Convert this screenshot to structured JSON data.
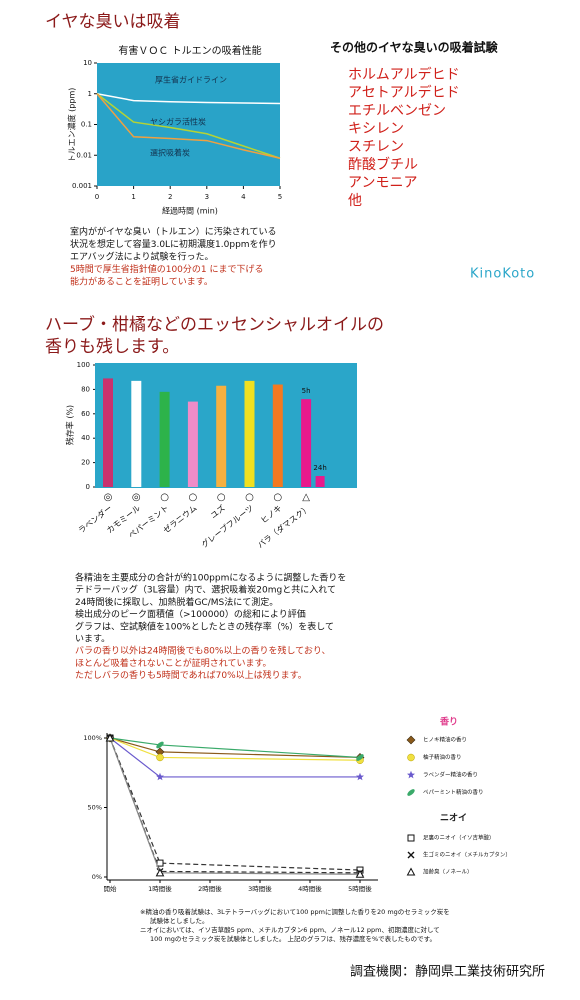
{
  "heading1": "イヤな臭いは吸着",
  "chart_data": [
    {
      "type": "line",
      "title": "有害ＶＯＣ トルエンの吸着性能",
      "xlabel": "経過時間 (min)",
      "ylabel": "トルエン濃度 (ppm)",
      "x": [
        0,
        1,
        2,
        3,
        4,
        5
      ],
      "xlim": [
        0,
        5
      ],
      "xticks": [
        0,
        1,
        2,
        3,
        4,
        5
      ],
      "ylim": [
        0.001,
        10
      ],
      "yticks": [
        10,
        1,
        0.1,
        0.01,
        0.001
      ],
      "log_y": true,
      "series": [
        {
          "name": "厚生省ガイドライン",
          "color": "#ffffff",
          "values": [
            1,
            0.6,
            0.55,
            0.52,
            0.5,
            0.48
          ]
        },
        {
          "name": "ヤシガラ活性炭",
          "color": "#b5d334",
          "values": [
            1,
            0.12,
            0.08,
            0.05,
            0.02,
            0.008
          ]
        },
        {
          "name": "選択吸着炭",
          "color": "#f0a040",
          "values": [
            1,
            0.04,
            0.035,
            0.03,
            0.015,
            0.008
          ]
        }
      ]
    },
    {
      "type": "bar",
      "ylabel": "残存率 (%)",
      "categories": [
        "ラベンダー",
        "カモミール",
        "ペパーミント",
        "ゼラニウム",
        "ユズ",
        "グレープフルーツ",
        "ヒノキ",
        "バラ（ダマスク）"
      ],
      "values": [
        89,
        87,
        78,
        70,
        83,
        87,
        84,
        72
      ],
      "colors": [
        "#c8326e",
        "#ffffff",
        "#2db34a",
        "#f08cc8",
        "#f5b040",
        "#f0e020",
        "#f47920",
        "#e8198c"
      ],
      "symbols": [
        "◎",
        "◎",
        "○",
        "○",
        "○",
        "○",
        "○",
        "△"
      ],
      "main_label": "5h",
      "extra": {
        "label": "24h",
        "value": 9,
        "color": "#e8198c"
      },
      "ylim": [
        0,
        100
      ],
      "yticks": [
        0,
        20,
        40,
        60,
        80,
        100
      ]
    },
    {
      "type": "line",
      "x": [
        0,
        1,
        5
      ],
      "xlim": [
        0,
        5
      ],
      "xticks": [
        {
          "value": 0,
          "label": "開始"
        },
        {
          "value": 1,
          "label": "1時間後"
        },
        {
          "value": 2,
          "label": "2時間後"
        },
        {
          "value": 3,
          "label": "3時間後"
        },
        {
          "value": 4,
          "label": "4時間後"
        },
        {
          "value": 5,
          "label": "5時間後"
        }
      ],
      "ylim": [
        0,
        100
      ],
      "yticks": [
        {
          "value": 0,
          "label": "0%"
        },
        {
          "value": 50,
          "label": "50%"
        },
        {
          "value": 100,
          "label": "100%"
        }
      ],
      "legend_groups": [
        {
          "title": "香り",
          "color": "#e03c8c"
        },
        {
          "title": "ニオイ",
          "color": "#222222"
        }
      ],
      "series": [
        {
          "name": "ヒノキ精油の香り",
          "color": "#8b5a1b",
          "marker": "diamond",
          "group": 0,
          "values": [
            100,
            90,
            86
          ]
        },
        {
          "name": "柚子精油の香り",
          "color": "#f0e040",
          "marker": "circle",
          "group": 0,
          "values": [
            100,
            86,
            84
          ]
        },
        {
          "name": "ラベンダー精油の香り",
          "color": "#6a5acd",
          "marker": "star",
          "group": 0,
          "values": [
            100,
            72,
            72
          ]
        },
        {
          "name": "ペパーミント精油の香り",
          "color": "#3aaa6a",
          "marker": "leaf",
          "group": 0,
          "values": [
            100,
            95,
            86
          ]
        },
        {
          "name": "足裏のニオイ（イソ吉草酸）",
          "color": "#333333",
          "marker": "square",
          "group": 1,
          "dash": true,
          "values": [
            100,
            10,
            5
          ]
        },
        {
          "name": "生ゴミのニオイ（メチルカプタン）",
          "color": "#333333",
          "marker": "x",
          "group": 1,
          "dash": true,
          "values": [
            100,
            4,
            3
          ]
        },
        {
          "name": "加齢臭（ノネール）",
          "color": "#888888",
          "marker": "triangle",
          "group": 1,
          "values": [
            100,
            3,
            2
          ]
        }
      ]
    }
  ],
  "other_tests": {
    "title": "その他のイヤな臭いの吸着試験",
    "items": [
      "ホルムアルデヒド",
      "アセトアルデヒド",
      "エチルベンゼン",
      "キシレン",
      "スチレン",
      "酢酸ブチル",
      "アンモニア",
      "他"
    ]
  },
  "text1": {
    "lines": [
      "室内ががイヤな臭い（トルエン）に汚染されている",
      "状況を想定して容量3.0Lに初期濃度1.0ppmを作り",
      "エアバッグ法により試験を行った。"
    ],
    "highlight": [
      "5時間で厚生省指針値の100分の1 にまで下げる",
      "能力があることを証明しています。"
    ]
  },
  "logo": "KinoKoto",
  "heading2": [
    "ハーブ・柑橘などのエッセンシャルオイルの",
    "香りも残します。"
  ],
  "text2": {
    "lines": [
      "各精油を主要成分の合計が約100ppmになるように調整した香りを",
      "テドラーバッグ（3L容量）内で、選択吸着炭20mgと共に入れて",
      "24時間後に採取し、加熱脱着GC/MS法にて測定。",
      "検出成分のピーク面積値（>100000）の総和により評価",
      "グラフは、空試験値を100%としたときの残存率（%）を表して",
      "います。"
    ],
    "highlight": [
      "バラの香り以外は24時間後でも80%以上の香りを残しており、",
      "ほとんど吸着されないことが証明されています。",
      "ただしバラの香りも5時間であれば70%以上は残ります。"
    ]
  },
  "footnote": [
    "※精油の香り吸着試験は、3Lテトラーバッグにおいて100 ppmに調整した香りを20 mgのセラミック炭を",
    "試験体としました。",
    "ニオイにおいては、イソ吉草酸5 ppm、メチルカプタン6 ppm、ノネール12 ppm、初期濃度に対して",
    "100 mgのセラミック炭を試験体としました。 上記のグラフは、残存濃度を%で表したものです。"
  ],
  "credit": "調査機関：静岡県工業技術研究所"
}
